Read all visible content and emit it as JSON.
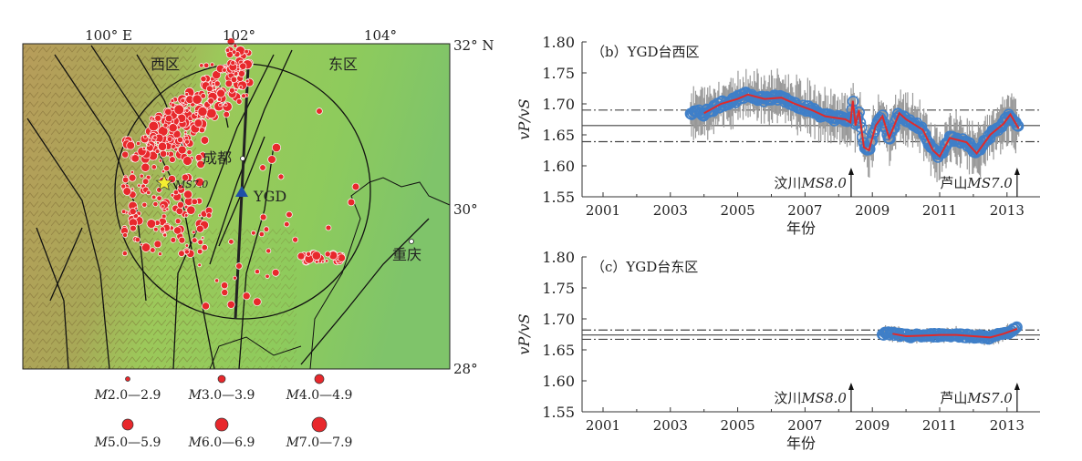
{
  "map": {
    "lon_labels": [
      "100° E",
      "102°",
      "104°"
    ],
    "lat_labels": [
      "32° N",
      "30°",
      "28°"
    ],
    "west_label": "西区",
    "east_label": "东区",
    "city1": "成都",
    "city2": "重庆",
    "station": "YGD",
    "mainshock_label": "MS7.0",
    "legend": [
      {
        "m": "M",
        "range": "2.0—2.9"
      },
      {
        "m": "M",
        "range": "3.0—3.9"
      },
      {
        "m": "M",
        "range": "4.0—4.9"
      },
      {
        "m": "M",
        "range": "5.0—5.9"
      },
      {
        "m": "M",
        "range": "6.0—6.9"
      },
      {
        "m": "M",
        "range": "7.0—7.9"
      }
    ],
    "colors": {
      "quake": "#e8282c",
      "station": "#1f4fa8",
      "star": "#f5ee30"
    }
  },
  "chart_data": [
    {
      "type": "line",
      "title": "（b）YGD台西区",
      "xlabel": "年份",
      "ylabel": "vP/vS",
      "xlim": [
        2000.4,
        2014
      ],
      "ylim": [
        1.55,
        1.8
      ],
      "xticks": [
        "2001",
        "2003",
        "2005",
        "2007",
        "2009",
        "2011",
        "2013"
      ],
      "yticks": [
        "1.55",
        "1.60",
        "1.65",
        "1.70",
        "1.75",
        "1.80"
      ],
      "ref_lines": {
        "mean": 1.665,
        "upper": 1.69,
        "lower": 1.639
      },
      "observed_start": 2003.6,
      "smoothed": {
        "x": [
          2004.0,
          2004.5,
          2005.0,
          2005.3,
          2005.8,
          2006.3,
          2006.7,
          2007.2,
          2007.6,
          2008.2,
          2008.35,
          2008.42,
          2008.5,
          2008.6,
          2008.75,
          2008.9,
          2009.1,
          2009.3,
          2009.5,
          2009.8,
          2010.0,
          2010.3,
          2010.5,
          2010.8,
          2011.0,
          2011.3,
          2011.8,
          2012.1,
          2012.5,
          2012.9,
          2013.1,
          2013.35
        ],
        "y": [
          1.685,
          1.7,
          1.708,
          1.715,
          1.708,
          1.71,
          1.7,
          1.69,
          1.68,
          1.675,
          1.67,
          1.705,
          1.665,
          1.69,
          1.63,
          1.625,
          1.665,
          1.68,
          1.645,
          1.685,
          1.675,
          1.665,
          1.658,
          1.625,
          1.615,
          1.645,
          1.638,
          1.62,
          1.65,
          1.668,
          1.683,
          1.66
        ]
      },
      "events": [
        {
          "label": "汶川",
          "mag": "MS8.0",
          "year": 2008.37
        },
        {
          "label": "芦山",
          "mag": "MS7.0",
          "year": 2013.3
        }
      ]
    },
    {
      "type": "line",
      "title": "（c）YGD台东区",
      "xlabel": "年份",
      "ylabel": "vP/vS",
      "xlim": [
        2000.4,
        2014
      ],
      "ylim": [
        1.55,
        1.8
      ],
      "xticks": [
        "2001",
        "2003",
        "2005",
        "2007",
        "2009",
        "2011",
        "2013"
      ],
      "yticks": [
        "1.55",
        "1.60",
        "1.65",
        "1.70",
        "1.75",
        "1.80"
      ],
      "ref_lines": {
        "mean": 1.674,
        "upper": 1.682,
        "lower": 1.667
      },
      "observed_start": 2009.3,
      "smoothed": {
        "x": [
          2009.6,
          2010.0,
          2010.5,
          2011.0,
          2011.5,
          2012.0,
          2012.5,
          2012.9,
          2013.3
        ],
        "y": [
          1.676,
          1.672,
          1.673,
          1.674,
          1.674,
          1.672,
          1.67,
          1.676,
          1.684
        ]
      },
      "events": [
        {
          "label": "汶川",
          "mag": "MS8.0",
          "year": 2008.37
        },
        {
          "label": "芦山",
          "mag": "MS7.0",
          "year": 2013.3
        }
      ]
    }
  ]
}
